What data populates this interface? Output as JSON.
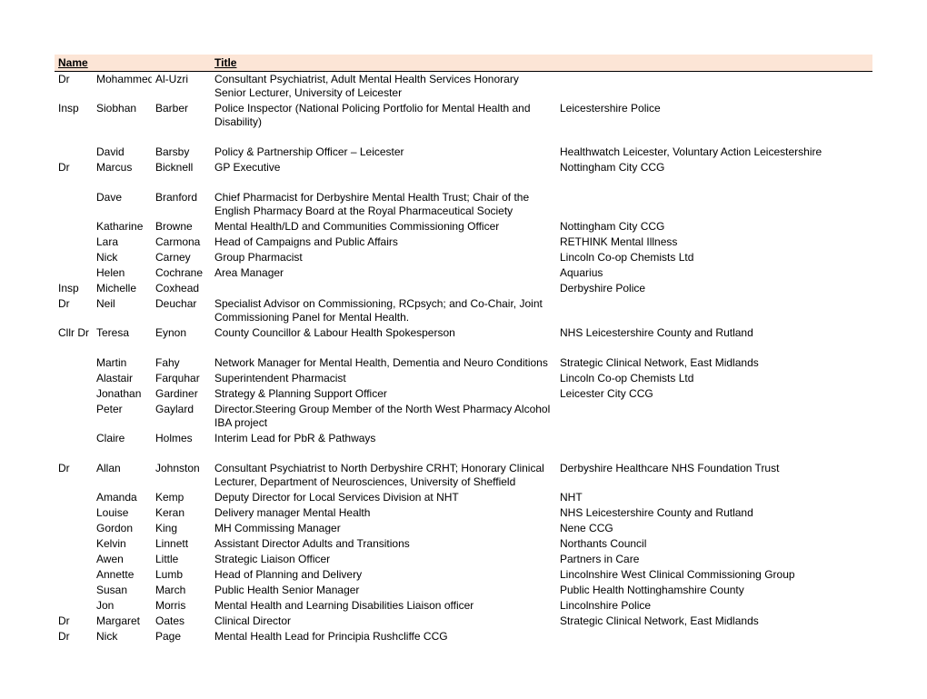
{
  "header": {
    "name": "Name",
    "title": "Title"
  },
  "columns": [
    "honorific",
    "first",
    "last",
    "title",
    "org"
  ],
  "rows": [
    {
      "honorific": "Dr",
      "first": "Mohammed",
      "last": "Al-Uzri",
      "title": "Consultant Psychiatrist, Adult Mental Health Services Honorary Senior Lecturer, University of Leicester",
      "org": ""
    },
    {
      "honorific": "Insp",
      "first": "Siobhan",
      "last": "Barber",
      "title": "Police Inspector (National Policing  Portfolio for Mental Health and Disability)",
      "org": "Leicestershire Police"
    },
    {
      "spacer": true
    },
    {
      "honorific": "",
      "first": "David",
      "last": "Barsby",
      "title": "Policy & Partnership Officer – Leicester",
      "org": "Healthwatch Leicester, Voluntary Action Leicestershire"
    },
    {
      "honorific": "Dr",
      "first": "Marcus",
      "last": "Bicknell",
      "title": "GP Executive",
      "org": "Nottingham City CCG"
    },
    {
      "spacer": true
    },
    {
      "honorific": "",
      "first": "Dave",
      "last": "Branford",
      "title": "Chief Pharmacist for Derbyshire Mental Health Trust; Chair of the English Pharmacy Board at the Royal Pharmaceutical Society",
      "org": ""
    },
    {
      "honorific": "",
      "first": "Katharine",
      "last": "Browne",
      "title": "Mental Health/LD and Communities Commissioning Officer",
      "org": "Nottingham City CCG"
    },
    {
      "honorific": "",
      "first": "Lara",
      "last": "Carmona",
      "title": "Head of Campaigns and Public Affairs",
      "org": "RETHINK Mental Illness"
    },
    {
      "honorific": "",
      "first": "Nick",
      "last": "Carney",
      "title": "Group Pharmacist",
      "org": "Lincoln Co-op Chemists Ltd"
    },
    {
      "honorific": "",
      "first": "Helen",
      "last": "Cochrane",
      "title": "Area Manager",
      "org": "Aquarius"
    },
    {
      "honorific": "Insp",
      "first": "Michelle",
      "last": "Coxhead",
      "title": "",
      "org": "Derbyshire Police"
    },
    {
      "honorific": "Dr",
      "first": "Neil",
      "last": "Deuchar",
      "title": "Specialist Advisor on Commissioning, RCpsych; and Co-Chair, Joint Commissioning Panel for Mental Health.",
      "org": ""
    },
    {
      "honorific": "Cllr Dr",
      "first": "Teresa",
      "last": "Eynon",
      "title": "County Councillor & Labour Health Spokesperson",
      "org": "NHS Leicestershire County and Rutland"
    },
    {
      "spacer": true
    },
    {
      "honorific": "",
      "first": "Martin",
      "last": "Fahy",
      "title": "Network Manager for Mental Health, Dementia and Neuro Conditions",
      "org": "Strategic Clinical Network, East Midlands"
    },
    {
      "honorific": "",
      "first": "Alastair",
      "last": "Farquhar",
      "title": "Superintendent Pharmacist",
      "org": "Lincoln Co-op Chemists Ltd"
    },
    {
      "honorific": "",
      "first": "Jonathan",
      "last": "Gardiner",
      "title": "Strategy & Planning Support Officer",
      "org": "Leicester City CCG"
    },
    {
      "honorific": "",
      "first": "Peter",
      "last": "Gaylard",
      "title": "Director.Steering Group Member of the North West Pharmacy Alcohol IBA project",
      "org": ""
    },
    {
      "honorific": "",
      "first": "Claire",
      "last": "Holmes",
      "title": "Interim Lead for PbR & Pathways",
      "org": ""
    },
    {
      "spacer": true
    },
    {
      "honorific": "Dr",
      "first": "Allan",
      "last": "Johnston",
      "title": "Consultant Psychiatrist to North Derbyshire CRHT; Honorary Clinical Lecturer, Department of Neurosciences, University of Sheffield",
      "org": "Derbyshire Healthcare NHS Foundation Trust"
    },
    {
      "honorific": "",
      "first": "Amanda",
      "last": "Kemp",
      "title": "Deputy Director for Local Services Division at NHT",
      "org": "NHT"
    },
    {
      "honorific": "",
      "first": "Louise",
      "last": "Keran",
      "title": "Delivery manager Mental Health",
      "org": "NHS Leicestershire County and Rutland"
    },
    {
      "honorific": "",
      "first": "Gordon",
      "last": "King",
      "title": "MH Commissing Manager",
      "org": "Nene CCG"
    },
    {
      "honorific": "",
      "first": "Kelvin",
      "last": "Linnett",
      "title": "Assistant Director Adults and Transitions",
      "org": "Northants Council"
    },
    {
      "honorific": "",
      "first": "Awen",
      "last": "Little",
      "title": "Strategic Liaison Officer",
      "org": "Partners in Care"
    },
    {
      "honorific": "",
      "first": "Annette",
      "last": "Lumb",
      "title": "Head of Planning and Delivery",
      "org": "Lincolnshire West Clinical Commissioning Group"
    },
    {
      "honorific": "",
      "first": "Susan",
      "last": "March",
      "title": "Public Health Senior Manager",
      "org": "Public Health Nottinghamshire County"
    },
    {
      "honorific": "",
      "first": "Jon",
      "last": "Morris",
      "title": "Mental Health and Learning Disabilities Liaison officer",
      "org": "Lincolnshire Police"
    },
    {
      "honorific": "Dr",
      "first": "Margaret",
      "last": "Oates",
      "title": "Clinical Director",
      "org": "Strategic Clinical Network, East Midlands"
    },
    {
      "honorific": "Dr",
      "first": "Nick",
      "last": "Page",
      "title": "Mental Health Lead for Principia Rushcliffe CCG",
      "org": ""
    }
  ]
}
